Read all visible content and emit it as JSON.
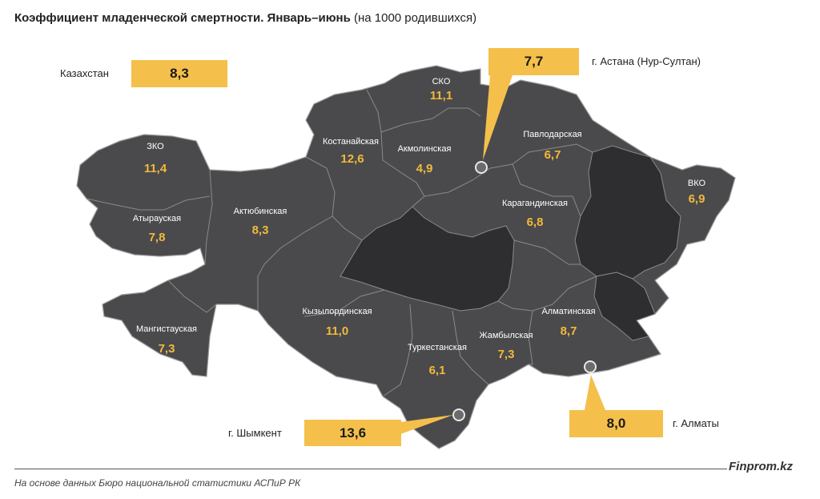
{
  "title": {
    "main": "Коэффициент младенческой смертности. Январь–июнь",
    "sub": "(на 1000 родившихся)"
  },
  "country": {
    "label": "Казахстан",
    "value": "8,3"
  },
  "regions": {
    "sko": {
      "name": "СКО",
      "value": "11,1"
    },
    "kostanay": {
      "name": "Костанайская",
      "value": "12,6"
    },
    "akmola": {
      "name": "Акмолинская",
      "value": "4,9"
    },
    "pavlodar": {
      "name": "Павлодарская",
      "value": "6,7"
    },
    "zko": {
      "name": "ЗКО",
      "value": "11,4"
    },
    "atyrau": {
      "name": "Атырауская",
      "value": "7,8"
    },
    "aktobe": {
      "name": "Актюбинская",
      "value": "8,3"
    },
    "karaganda": {
      "name": "Карагандинская",
      "value": "6,8"
    },
    "vko": {
      "name": "ВКО",
      "value": "6,9"
    },
    "mangistau": {
      "name": "Мангистауская",
      "value": "7,3"
    },
    "kyzylorda": {
      "name": "Кызылординская",
      "value": "11,0"
    },
    "almaty_reg": {
      "name": "Алматинская",
      "value": "8,7"
    },
    "zhambyl": {
      "name": "Жамбылская",
      "value": "7,3"
    },
    "turkestan": {
      "name": "Туркестанская",
      "value": "6,1"
    }
  },
  "cities": {
    "astana": {
      "label": "г. Астана (Нур-Султан)",
      "value": "7,7"
    },
    "shymkent": {
      "label": "г. Шымкент",
      "value": "13,6"
    },
    "almaty": {
      "label": "г. Алматы",
      "value": "8,0"
    }
  },
  "colors": {
    "region_fill": "#4a4a4c",
    "highlight_fill": "#2e2e30",
    "border": "#8a8a8a",
    "accent": "#f4c04b",
    "value_text": "#f2b93b"
  },
  "footer": {
    "source": "На основе данных Бюро национальной статистики АСПиР РК",
    "brand": "Finprom.kz"
  }
}
